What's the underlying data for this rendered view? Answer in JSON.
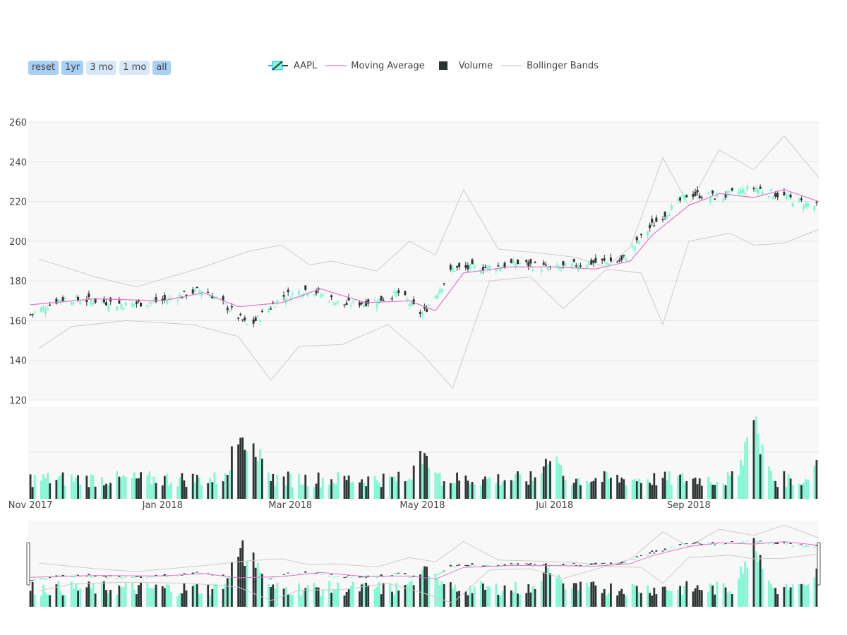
{
  "range_selector": {
    "buttons": [
      {
        "label": "reset",
        "active": true
      },
      {
        "label": "1yr",
        "active": true
      },
      {
        "label": "3 mo",
        "active": false
      },
      {
        "label": "1 mo",
        "active": false
      },
      {
        "label": "all",
        "active": true
      }
    ]
  },
  "legend": {
    "items": [
      {
        "label": "AAPL",
        "icon": "candlestick-icon"
      },
      {
        "label": "Moving Average",
        "icon": "line-icon"
      },
      {
        "label": "Volume",
        "icon": "square-icon"
      },
      {
        "label": "Bollinger Bands",
        "icon": "line-icon"
      }
    ]
  },
  "colors": {
    "increasing": "#17BECF",
    "increasing_fill": "#7DF9D3",
    "decreasing": "#2F3535",
    "moving_average": "#E377C2",
    "bollinger": "#CCCCCC",
    "plot_background": "#F8F8F8",
    "grid": "#E6E6E6"
  },
  "chart_data": {
    "type": "candlestick",
    "ticker": "AAPL",
    "y_range": [
      120,
      260
    ],
    "y_ticks": [
      "120",
      "140",
      "160",
      "180",
      "200",
      "220",
      "240",
      "260"
    ],
    "x_range": [
      "2017-10-31",
      "2018-10-31"
    ],
    "x_ticks": [
      {
        "label": "Nov 2017",
        "date": "2017-11-01"
      },
      {
        "label": "Jan 2018",
        "date": "2018-01-01"
      },
      {
        "label": "Mar 2018",
        "date": "2018-03-01"
      },
      {
        "label": "May 2018",
        "date": "2018-05-01"
      },
      {
        "label": "Jul 2018",
        "date": "2018-07-01"
      },
      {
        "label": "Sep 2018",
        "date": "2018-09-01"
      }
    ],
    "close_path": [
      [
        "2017-11-01",
        163
      ],
      [
        "2017-11-15",
        171
      ],
      [
        "2017-12-01",
        170
      ],
      [
        "2017-12-15",
        168
      ],
      [
        "2018-01-01",
        170
      ],
      [
        "2018-01-20",
        176
      ],
      [
        "2018-02-01",
        166
      ],
      [
        "2018-02-10",
        157
      ],
      [
        "2018-02-25",
        172
      ],
      [
        "2018-03-10",
        176
      ],
      [
        "2018-03-25",
        168
      ],
      [
        "2018-04-10",
        170
      ],
      [
        "2018-04-20",
        174
      ],
      [
        "2018-05-01",
        163
      ],
      [
        "2018-05-15",
        186
      ],
      [
        "2018-06-01",
        187
      ],
      [
        "2018-06-15",
        189
      ],
      [
        "2018-07-01",
        186
      ],
      [
        "2018-07-15",
        189
      ],
      [
        "2018-08-01",
        190
      ],
      [
        "2018-08-15",
        208
      ],
      [
        "2018-09-01",
        224
      ],
      [
        "2018-09-15",
        222
      ],
      [
        "2018-10-01",
        227
      ],
      [
        "2018-10-31",
        217
      ]
    ],
    "moving_average": [
      [
        "2017-11-01",
        168
      ],
      [
        "2017-12-01",
        171
      ],
      [
        "2018-01-01",
        170
      ],
      [
        "2018-01-20",
        174
      ],
      [
        "2018-02-05",
        167
      ],
      [
        "2018-02-25",
        169
      ],
      [
        "2018-03-15",
        176
      ],
      [
        "2018-04-05",
        169
      ],
      [
        "2018-04-25",
        170
      ],
      [
        "2018-05-07",
        165
      ],
      [
        "2018-05-20",
        184
      ],
      [
        "2018-06-10",
        187
      ],
      [
        "2018-07-01",
        187
      ],
      [
        "2018-07-20",
        186
      ],
      [
        "2018-08-05",
        190
      ],
      [
        "2018-08-15",
        203
      ],
      [
        "2018-09-01",
        218
      ],
      [
        "2018-09-15",
        224
      ],
      [
        "2018-10-01",
        222
      ],
      [
        "2018-10-15",
        226
      ],
      [
        "2018-10-31",
        220
      ]
    ],
    "bollinger_upper": [
      [
        "2017-11-05",
        191
      ],
      [
        "2017-12-01",
        182
      ],
      [
        "2017-12-20",
        177
      ],
      [
        "2018-01-20",
        187
      ],
      [
        "2018-02-10",
        195
      ],
      [
        "2018-02-25",
        198
      ],
      [
        "2018-03-10",
        188
      ],
      [
        "2018-03-20",
        190
      ],
      [
        "2018-04-10",
        185
      ],
      [
        "2018-04-25",
        200
      ],
      [
        "2018-05-07",
        193
      ],
      [
        "2018-05-20",
        226
      ],
      [
        "2018-06-05",
        196
      ],
      [
        "2018-06-25",
        194
      ],
      [
        "2018-07-10",
        192
      ],
      [
        "2018-07-25",
        187
      ],
      [
        "2018-08-05",
        197
      ],
      [
        "2018-08-20",
        242
      ],
      [
        "2018-09-01",
        218
      ],
      [
        "2018-09-15",
        246
      ],
      [
        "2018-10-01",
        236
      ],
      [
        "2018-10-15",
        253
      ],
      [
        "2018-10-31",
        232
      ]
    ],
    "bollinger_lower": [
      [
        "2017-11-05",
        146
      ],
      [
        "2017-11-20",
        157
      ],
      [
        "2017-12-15",
        160
      ],
      [
        "2018-01-15",
        158
      ],
      [
        "2018-02-05",
        152
      ],
      [
        "2018-02-20",
        130
      ],
      [
        "2018-03-05",
        147
      ],
      [
        "2018-03-25",
        148
      ],
      [
        "2018-04-15",
        158
      ],
      [
        "2018-05-01",
        143
      ],
      [
        "2018-05-15",
        126
      ],
      [
        "2018-06-01",
        180
      ],
      [
        "2018-06-20",
        182
      ],
      [
        "2018-07-05",
        166
      ],
      [
        "2018-07-25",
        186
      ],
      [
        "2018-08-10",
        184
      ],
      [
        "2018-08-20",
        158
      ],
      [
        "2018-09-01",
        200
      ],
      [
        "2018-09-20",
        204
      ],
      [
        "2018-10-01",
        198
      ],
      [
        "2018-10-15",
        199
      ],
      [
        "2018-10-31",
        206
      ]
    ],
    "volume_spikes": [
      [
        "2018-02-06",
        1.72
      ],
      [
        "2018-02-12",
        1.45
      ],
      [
        "2018-05-02",
        1.35
      ],
      [
        "2018-06-29",
        1.26
      ],
      [
        "2018-10-01",
        2.0
      ],
      [
        "2018-10-31",
        1.0
      ]
    ],
    "range_slider": true
  }
}
